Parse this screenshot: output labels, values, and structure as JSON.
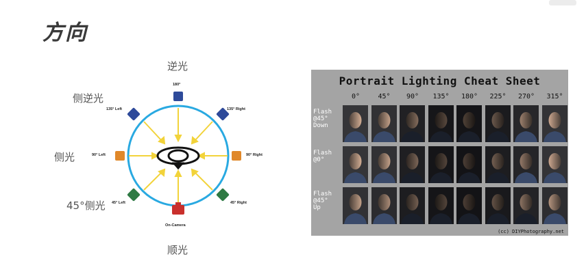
{
  "slide": {
    "title": "方向",
    "direction_labels": {
      "back": "逆光",
      "side_back": "侧逆光",
      "side": "侧光",
      "forty_five_side": "45°侧光",
      "front": "顺光"
    }
  },
  "diagram": {
    "lights": [
      {
        "key": "l180",
        "label": "180°",
        "color": "#2e4a9a"
      },
      {
        "key": "l135L",
        "label": "135° Left",
        "color": "#2e4a9a"
      },
      {
        "key": "l135R",
        "label": "135° Right",
        "color": "#2e4a9a"
      },
      {
        "key": "l90L",
        "label": "90° Left",
        "color": "#e0882a"
      },
      {
        "key": "l90R",
        "label": "90° Right",
        "color": "#e0882a"
      },
      {
        "key": "l45L",
        "label": "45° Left",
        "color": "#2f7a44"
      },
      {
        "key": "l45R",
        "label": "45° Right",
        "color": "#2f7a44"
      },
      {
        "key": "cam",
        "label": "On-Camera",
        "color": "#c9302c"
      }
    ],
    "circle_color": "#29a9e1",
    "arrow_color": "#f2d33a"
  },
  "cheat_sheet": {
    "title": "Portrait Lighting Cheat Sheet",
    "columns": [
      "0°",
      "45°",
      "90°",
      "135°",
      "180°",
      "225°",
      "270°",
      "315°"
    ],
    "rows": [
      {
        "label_lines": [
          "Flash",
          "@45°",
          "Down"
        ],
        "brightness": [
          0.95,
          0.85,
          0.45,
          0.18,
          0.12,
          0.3,
          0.6,
          0.9
        ]
      },
      {
        "label_lines": [
          "Flash",
          "@0°"
        ],
        "brightness": [
          0.95,
          0.85,
          0.4,
          0.15,
          0.1,
          0.35,
          0.55,
          0.9
        ]
      },
      {
        "label_lines": [
          "Flash",
          "@45°",
          "Up"
        ],
        "brightness": [
          0.85,
          0.7,
          0.35,
          0.15,
          0.1,
          0.25,
          0.5,
          0.75
        ]
      }
    ],
    "credit": "(cc) DIYPhotography.net"
  }
}
